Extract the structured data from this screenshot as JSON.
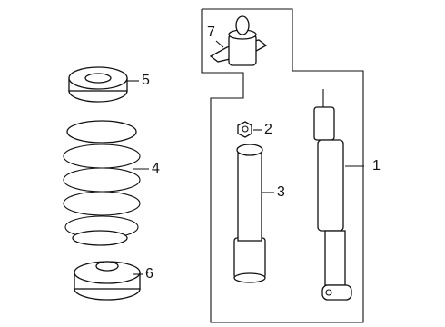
{
  "callouts": [
    {
      "label": "1"
    },
    {
      "label": "2"
    },
    {
      "label": "3"
    },
    {
      "label": "4"
    },
    {
      "label": "5"
    },
    {
      "label": "6"
    },
    {
      "label": "7"
    }
  ]
}
